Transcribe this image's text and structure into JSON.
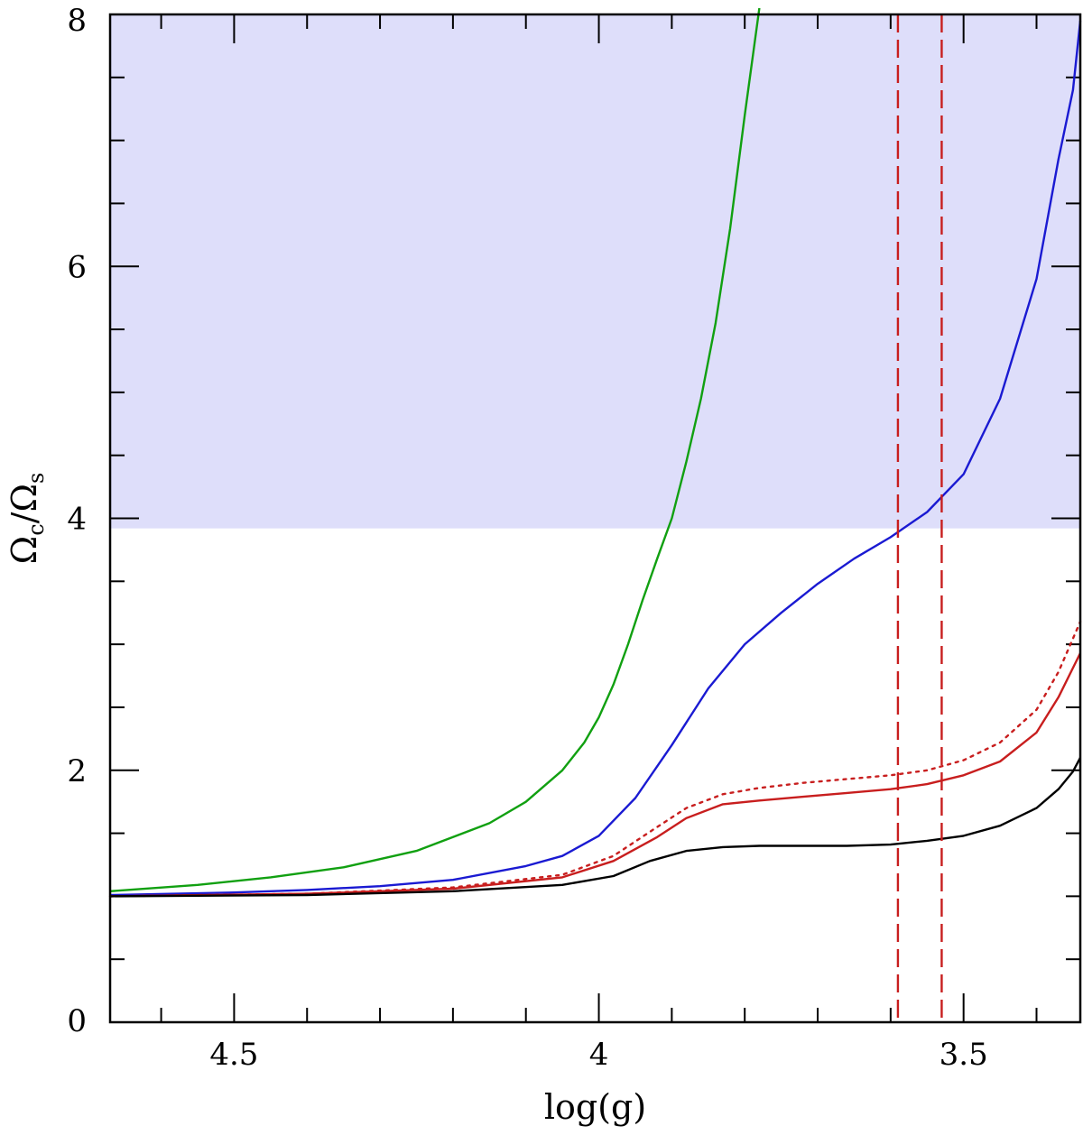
{
  "chart_data": {
    "type": "line",
    "xlabel": "log(g)",
    "ylabel": {
      "main_1": "Ω",
      "sub_1": "c",
      "slash": "/",
      "main_2": "Ω",
      "sub_2": "s"
    },
    "xlim": [
      4.67,
      3.34
    ],
    "ylim": [
      0,
      8
    ],
    "x_reversed": true,
    "x_ticks": [
      {
        "value": 4.5,
        "label": "4.5"
      },
      {
        "value": 4.0,
        "label": "4"
      },
      {
        "value": 3.5,
        "label": "3.5"
      }
    ],
    "y_ticks": [
      {
        "value": 0,
        "label": "0"
      },
      {
        "value": 2,
        "label": "2"
      },
      {
        "value": 4,
        "label": "4"
      },
      {
        "value": 6,
        "label": "6"
      },
      {
        "value": 8,
        "label": "8"
      }
    ],
    "x_minor_step": 0.1,
    "y_minor_step": 0.5,
    "shaded_region": {
      "y_from": 3.92,
      "y_to": 8,
      "color": "#dedefa"
    },
    "vertical_lines": [
      {
        "x": 3.59,
        "color": "#c81e1e",
        "style": "dashed"
      },
      {
        "x": 3.53,
        "color": "#c81e1e",
        "style": "dashed"
      }
    ],
    "series": [
      {
        "color": "#11a011",
        "style": "solid",
        "x": [
          4.67,
          4.55,
          4.45,
          4.35,
          4.25,
          4.15,
          4.1,
          4.05,
          4.02,
          4.0,
          3.98,
          3.96,
          3.94,
          3.92,
          3.9,
          3.88,
          3.86,
          3.84,
          3.82,
          3.8,
          3.78
        ],
        "y": [
          1.04,
          1.09,
          1.15,
          1.23,
          1.36,
          1.58,
          1.75,
          2.0,
          2.22,
          2.42,
          2.68,
          3.0,
          3.35,
          3.68,
          4.0,
          4.45,
          4.95,
          5.55,
          6.3,
          7.2,
          8.05
        ]
      },
      {
        "color": "#1a1ad2",
        "style": "solid",
        "x": [
          4.67,
          4.5,
          4.4,
          4.3,
          4.2,
          4.1,
          4.05,
          4.0,
          3.95,
          3.9,
          3.85,
          3.8,
          3.75,
          3.7,
          3.65,
          3.6,
          3.55,
          3.5,
          3.45,
          3.4,
          3.37,
          3.35,
          3.34
        ],
        "y": [
          1.01,
          1.03,
          1.05,
          1.08,
          1.13,
          1.24,
          1.32,
          1.48,
          1.78,
          2.2,
          2.65,
          3.0,
          3.25,
          3.48,
          3.68,
          3.85,
          4.05,
          4.35,
          4.95,
          5.9,
          6.85,
          7.4,
          7.95
        ]
      },
      {
        "color": "#c81e1e",
        "style": "solid",
        "x": [
          4.67,
          4.4,
          4.2,
          4.05,
          3.98,
          3.92,
          3.88,
          3.83,
          3.78,
          3.72,
          3.66,
          3.6,
          3.55,
          3.5,
          3.45,
          3.4,
          3.37,
          3.34
        ],
        "y": [
          1.0,
          1.02,
          1.06,
          1.15,
          1.28,
          1.47,
          1.62,
          1.73,
          1.76,
          1.79,
          1.82,
          1.85,
          1.89,
          1.96,
          2.07,
          2.3,
          2.58,
          2.93
        ]
      },
      {
        "color": "#c81e1e",
        "style": "dotted",
        "x": [
          4.67,
          4.4,
          4.2,
          4.05,
          3.98,
          3.92,
          3.88,
          3.83,
          3.78,
          3.72,
          3.66,
          3.6,
          3.55,
          3.5,
          3.45,
          3.4,
          3.37,
          3.34
        ],
        "y": [
          1.0,
          1.02,
          1.07,
          1.17,
          1.32,
          1.55,
          1.7,
          1.81,
          1.86,
          1.9,
          1.93,
          1.96,
          2.0,
          2.08,
          2.22,
          2.48,
          2.78,
          3.18
        ]
      },
      {
        "color": "#000000",
        "style": "solid",
        "x": [
          4.67,
          4.4,
          4.2,
          4.05,
          3.98,
          3.93,
          3.88,
          3.83,
          3.78,
          3.72,
          3.66,
          3.6,
          3.55,
          3.5,
          3.45,
          3.4,
          3.37,
          3.35,
          3.34
        ],
        "y": [
          1.0,
          1.01,
          1.04,
          1.09,
          1.16,
          1.28,
          1.36,
          1.39,
          1.4,
          1.4,
          1.4,
          1.41,
          1.44,
          1.48,
          1.56,
          1.7,
          1.85,
          1.99,
          2.1
        ]
      }
    ]
  }
}
